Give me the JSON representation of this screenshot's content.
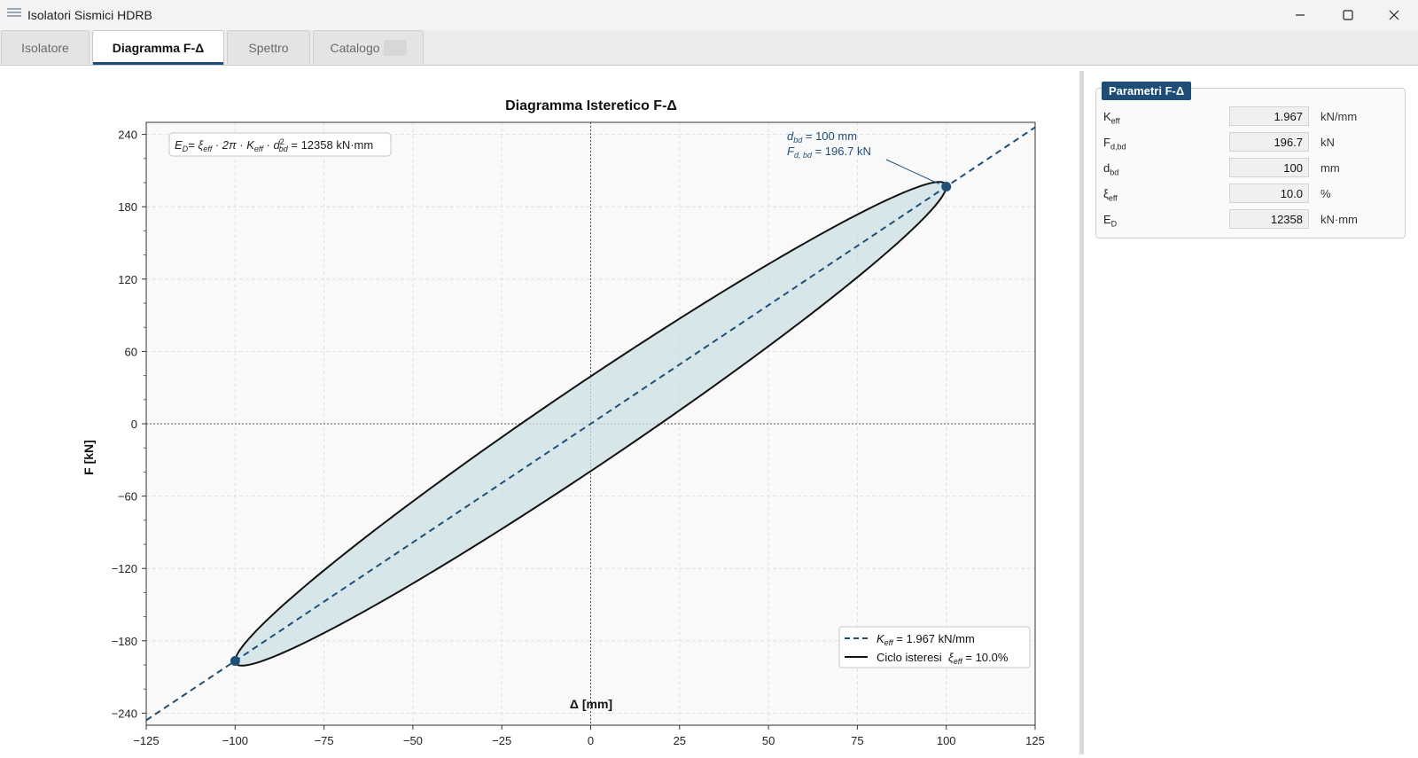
{
  "window": {
    "title": "Isolatori Sismici HDRB",
    "icons": {
      "minimize": "minimize-icon",
      "maximize": "maximize-icon",
      "close": "close-icon"
    }
  },
  "tabs": [
    {
      "label": "Isolatore",
      "active": false
    },
    {
      "label": "Diagramma F-Δ",
      "active": true
    },
    {
      "label": "Spettro",
      "active": false
    },
    {
      "label": "Catalogo",
      "active": false
    }
  ],
  "colors": {
    "accent": "#1e4d78",
    "keff_line": "#1f4e79",
    "cycle_line": "#111111",
    "cycle_fill": "#c9dfe3",
    "point": "#1f4e79"
  },
  "chart_data": {
    "type": "line",
    "title": "Diagramma Isteretico F-Δ",
    "xlabel": "Δ [mm]",
    "ylabel": "F [kN]",
    "xlim": [
      -125,
      125
    ],
    "ylim": [
      -250,
      250
    ],
    "xticks": [
      -125,
      -100,
      -75,
      -50,
      -25,
      0,
      25,
      50,
      75,
      100,
      125
    ],
    "xtick_labels": [
      "−125",
      "−100",
      "−75",
      "−50",
      "−25",
      "0",
      "25",
      "50",
      "75",
      "100",
      "125"
    ],
    "yticks": [
      240,
      180,
      120,
      60,
      0,
      -60,
      -120,
      -180,
      -240
    ],
    "ytick_labels": [
      "240",
      "180",
      "120",
      "60",
      "0",
      "−60",
      "−120",
      "−180",
      "−240"
    ],
    "grid": true,
    "legend_position": "lower-right",
    "energy_box": {
      "lhs": "E",
      "lhs_sub": "D",
      "rhs": "= ξ",
      "xi_sub": "eff",
      "mid": " · 2π · K",
      "k_sub": "eff",
      "mid2": " · d",
      "d_sub": "bd",
      "d_sup": "2",
      "value": " = 12358 kN·mm"
    },
    "annotation": {
      "line1_symbol": "d",
      "line1_sub": "bd",
      "line1_value": " = 100 mm",
      "line2_symbol": "F",
      "line2_sub": "d, bd",
      "line2_value": " = 196.7 kN",
      "target": [
        100,
        196.7
      ]
    },
    "series": [
      {
        "name": "K_eff = 1.967 kN/mm",
        "legend_symbol": "K",
        "legend_sub": "eff",
        "legend_value": " = 1.967 kN/mm",
        "kind": "secant",
        "slope": 1.967,
        "x_range": [
          -125,
          125
        ]
      },
      {
        "name": "Ciclo isteresi ξ_eff = 10.0%",
        "legend_prefix": "Ciclo isteresi  ",
        "legend_symbol": "ξ",
        "legend_sub": "eff",
        "legend_value": " = 10.0%",
        "kind": "ellipse",
        "amplitude": 100,
        "force_amplitude": 196.7,
        "intercept": 39.3
      }
    ],
    "points": [
      {
        "x": 100,
        "y": 196.7
      },
      {
        "x": -100,
        "y": -196.7
      }
    ]
  },
  "params": {
    "title": "Parametri F-Δ",
    "rows": [
      {
        "label": "K",
        "sub": "eff",
        "value": "1.967",
        "unit": "kN/mm"
      },
      {
        "label": "F",
        "sub": "d,bd",
        "value": "196.7",
        "unit": "kN"
      },
      {
        "label": "d",
        "sub": "bd",
        "value": "100",
        "unit": "mm"
      },
      {
        "label": "ξ",
        "sub": "eff",
        "value": "10.0",
        "unit": "%"
      },
      {
        "label": "E",
        "sub": "D",
        "value": "12358",
        "unit": "kN·mm"
      }
    ]
  }
}
